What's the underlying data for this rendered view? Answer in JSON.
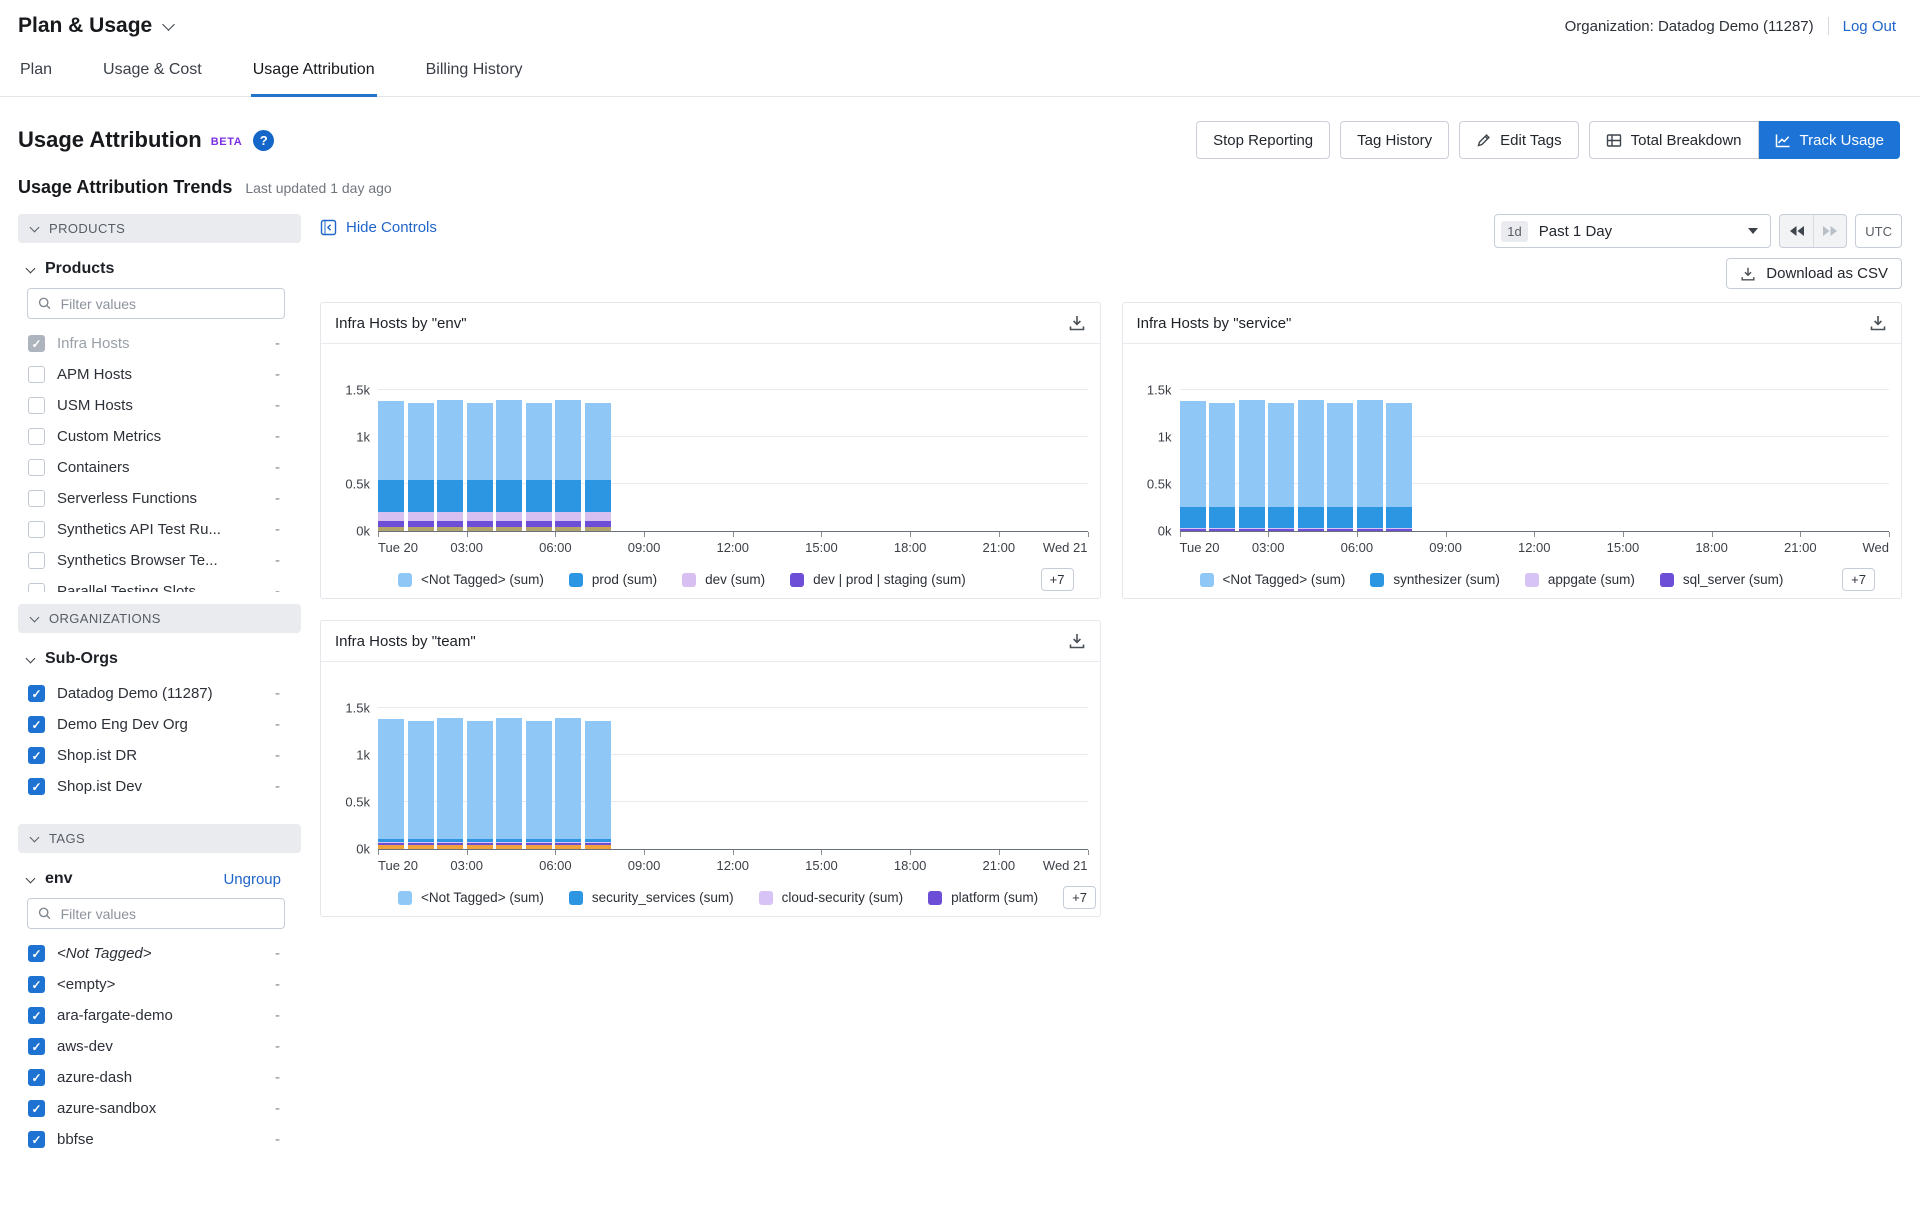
{
  "header": {
    "app_title": "Plan & Usage",
    "organization_label": "Organization: Datadog Demo (11287)",
    "logout_label": "Log Out"
  },
  "tabs": [
    {
      "label": "Plan",
      "active": false
    },
    {
      "label": "Usage & Cost",
      "active": false
    },
    {
      "label": "Usage Attribution",
      "active": true
    },
    {
      "label": "Billing History",
      "active": false
    }
  ],
  "page": {
    "title": "Usage Attribution",
    "beta_badge": "BETA",
    "help_icon": "question-mark-circle"
  },
  "toolbar": {
    "stop_reporting": "Stop Reporting",
    "tag_history": "Tag History",
    "edit_tags": "Edit Tags",
    "total_breakdown": "Total Breakdown",
    "track_usage": "Track Usage"
  },
  "trends": {
    "title": "Usage Attribution Trends",
    "last_updated": "Last updated 1 day ago",
    "hide_controls": "Hide Controls",
    "time_range": {
      "badge": "1d",
      "label": "Past 1 Day"
    },
    "utc_label": "UTC",
    "download_csv": "Download as CSV"
  },
  "sidebar": {
    "products_section": "PRODUCTS",
    "products_group": "Products",
    "filter_placeholder": "Filter values",
    "products": [
      {
        "label": "Infra Hosts",
        "checked": true,
        "disabled": true,
        "value": "-"
      },
      {
        "label": "APM Hosts",
        "checked": false,
        "value": "-"
      },
      {
        "label": "USM Hosts",
        "checked": false,
        "value": "-"
      },
      {
        "label": "Custom Metrics",
        "checked": false,
        "value": "-"
      },
      {
        "label": "Containers",
        "checked": false,
        "value": "-"
      },
      {
        "label": "Serverless Functions",
        "checked": false,
        "value": "-"
      },
      {
        "label": "Synthetics API Test Ru...",
        "checked": false,
        "value": "-"
      },
      {
        "label": "Synthetics Browser Te...",
        "checked": false,
        "value": "-"
      },
      {
        "label": "Parallel Testing Slots",
        "checked": false,
        "value": "-"
      }
    ],
    "organizations_section": "ORGANIZATIONS",
    "suborgs_group": "Sub-Orgs",
    "suborgs": [
      {
        "label": "Datadog Demo (11287)",
        "checked": true,
        "value": "-"
      },
      {
        "label": "Demo Eng Dev Org",
        "checked": true,
        "value": "-"
      },
      {
        "label": "Shop.ist DR",
        "checked": true,
        "value": "-"
      },
      {
        "label": "Shop.ist Dev",
        "checked": true,
        "value": "-"
      }
    ],
    "tags_section": "TAGS",
    "tag_group": "env",
    "ungroup_label": "Ungroup",
    "tag_values": [
      {
        "label": "<Not Tagged>",
        "italic": true,
        "checked": true,
        "value": "-"
      },
      {
        "label": "<empty>",
        "checked": true,
        "value": "-"
      },
      {
        "label": "ara-fargate-demo",
        "checked": true,
        "value": "-"
      },
      {
        "label": "aws-dev",
        "checked": true,
        "value": "-"
      },
      {
        "label": "azure-dash",
        "checked": true,
        "value": "-"
      },
      {
        "label": "azure-sandbox",
        "checked": true,
        "value": "-"
      },
      {
        "label": "bbfse",
        "checked": true,
        "value": "-"
      }
    ]
  },
  "colors": {
    "accent_blue": "#1d74d6",
    "link_blue": "#2065c9",
    "tab_underline": "#2174c9",
    "beta_purple": "#7b2fe0"
  },
  "chart_data": [
    {
      "type": "bar",
      "title": "Infra Hosts by \"env\"",
      "ylim": [
        0,
        1500
      ],
      "hours_span": 24,
      "bar_start_hour": 0,
      "y_ticks": [
        {
          "v": 0,
          "label": "0k"
        },
        {
          "v": 500,
          "label": "0.5k"
        },
        {
          "v": 1000,
          "label": "1k"
        },
        {
          "v": 1500,
          "label": "1.5k"
        }
      ],
      "x_tick_hours": [
        0,
        3,
        6,
        9,
        12,
        15,
        18,
        21,
        24
      ],
      "x_tick_labels": [
        "Tue 20",
        "03:00",
        "06:00",
        "09:00",
        "12:00",
        "15:00",
        "18:00",
        "21:00",
        "Wed 21"
      ],
      "stack": [
        {
          "name": "other (sum)",
          "color": "#b3a569",
          "in_legend": false,
          "values": [
            40,
            40,
            40,
            40,
            40,
            40,
            40,
            40
          ]
        },
        {
          "name": "dev | prod | staging (sum)",
          "color": "#6c4fd6",
          "values": [
            70,
            70,
            70,
            70,
            70,
            70,
            70,
            70
          ]
        },
        {
          "name": "dev (sum)",
          "color": "#d7bff2",
          "values": [
            90,
            90,
            90,
            90,
            90,
            90,
            90,
            90
          ]
        },
        {
          "name": "prod (sum)",
          "color": "#2d96e3",
          "values": [
            345,
            345,
            345,
            345,
            345,
            345,
            345,
            345
          ]
        },
        {
          "name": "<Not Tagged> (sum)",
          "color": "#8fc8f6",
          "values": [
            840,
            812,
            845,
            822,
            845,
            812,
            847,
            815
          ]
        }
      ],
      "legend": [
        "<Not Tagged> (sum)",
        "prod (sum)",
        "dev (sum)",
        "dev | prod | staging (sum)"
      ],
      "legend_more": "+7"
    },
    {
      "type": "bar",
      "title": "Infra Hosts by \"service\"",
      "ylim": [
        0,
        1500
      ],
      "hours_span": 24,
      "bar_start_hour": 0,
      "y_ticks": [
        {
          "v": 0,
          "label": "0k"
        },
        {
          "v": 500,
          "label": "0.5k"
        },
        {
          "v": 1000,
          "label": "1k"
        },
        {
          "v": 1500,
          "label": "1.5k"
        }
      ],
      "x_tick_hours": [
        0,
        3,
        6,
        9,
        12,
        15,
        18,
        21,
        24
      ],
      "x_tick_labels": [
        "Tue 20",
        "03:00",
        "06:00",
        "09:00",
        "12:00",
        "15:00",
        "18:00",
        "21:00",
        "Wed"
      ],
      "stack": [
        {
          "name": "sql_server (sum)",
          "color": "#6c4fd6",
          "values": [
            20,
            20,
            20,
            20,
            20,
            20,
            20,
            20
          ]
        },
        {
          "name": "appgate (sum)",
          "color": "#d7c3f5",
          "values": [
            15,
            15,
            15,
            15,
            15,
            15,
            15,
            15
          ]
        },
        {
          "name": "synthesizer (sum)",
          "color": "#2d96e3",
          "values": [
            220,
            220,
            220,
            220,
            220,
            220,
            220,
            220
          ]
        },
        {
          "name": "<Not Tagged> (sum)",
          "color": "#8fc8f6",
          "values": [
            1130,
            1102,
            1135,
            1112,
            1135,
            1102,
            1137,
            1105
          ]
        }
      ],
      "legend": [
        "<Not Tagged> (sum)",
        "synthesizer (sum)",
        "appgate (sum)",
        "sql_server (sum)"
      ],
      "legend_more": "+7"
    },
    {
      "type": "bar",
      "title": "Infra Hosts by \"team\"",
      "ylim": [
        0,
        1500
      ],
      "hours_span": 24,
      "bar_start_hour": 0,
      "y_ticks": [
        {
          "v": 0,
          "label": "0k"
        },
        {
          "v": 500,
          "label": "0.5k"
        },
        {
          "v": 1000,
          "label": "1k"
        },
        {
          "v": 1500,
          "label": "1.5k"
        }
      ],
      "x_tick_hours": [
        0,
        3,
        6,
        9,
        12,
        15,
        18,
        21,
        24
      ],
      "x_tick_labels": [
        "Tue 20",
        "03:00",
        "06:00",
        "09:00",
        "12:00",
        "15:00",
        "18:00",
        "21:00",
        "Wed 21"
      ],
      "stack": [
        {
          "name": "other (sum)",
          "color": "#f0a33c",
          "in_legend": false,
          "values": [
            45,
            45,
            45,
            45,
            45,
            45,
            45,
            45
          ]
        },
        {
          "name": "platform (sum)",
          "color": "#6c4fd6",
          "values": [
            18,
            18,
            18,
            18,
            18,
            18,
            18,
            18
          ]
        },
        {
          "name": "cloud-security (sum)",
          "color": "#d7c3f5",
          "values": [
            12,
            12,
            12,
            12,
            12,
            12,
            12,
            12
          ]
        },
        {
          "name": "security_services (sum)",
          "color": "#2d96e3",
          "values": [
            30,
            30,
            30,
            30,
            30,
            30,
            30,
            30
          ]
        },
        {
          "name": "<Not Tagged> (sum)",
          "color": "#8fc8f6",
          "values": [
            1280,
            1252,
            1285,
            1262,
            1285,
            1252,
            1287,
            1255
          ]
        }
      ],
      "legend": [
        "<Not Tagged> (sum)",
        "security_services (sum)",
        "cloud-security (sum)",
        "platform (sum)"
      ],
      "legend_more": "+7"
    }
  ]
}
